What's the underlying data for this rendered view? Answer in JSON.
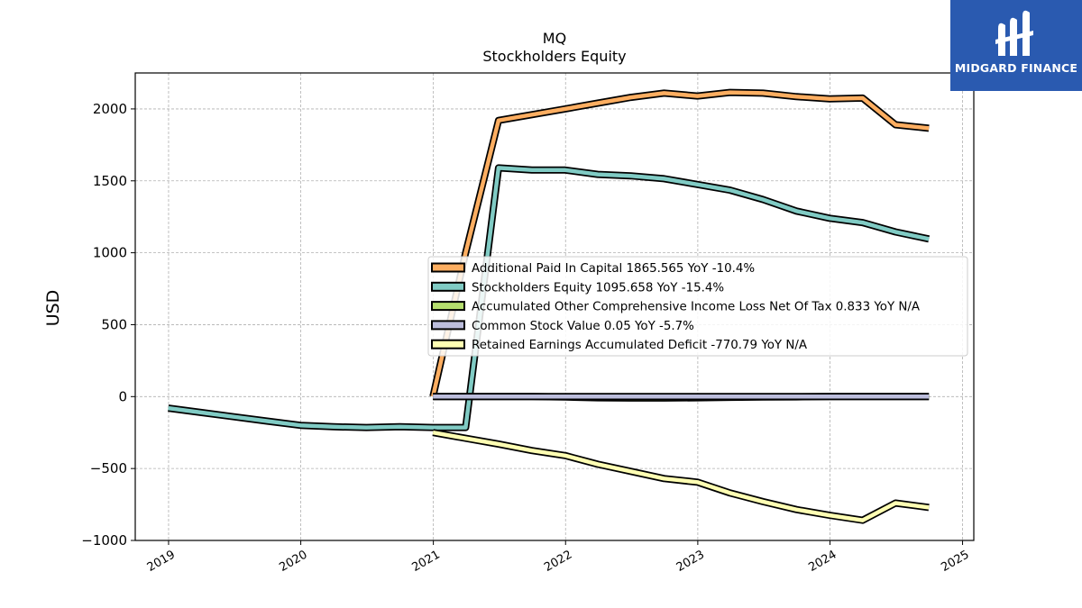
{
  "chart_data": {
    "type": "line",
    "title": "MQ",
    "subtitle": "Stockholders  Equity",
    "ylabel": "USD",
    "xlabel": "",
    "ylim": [
      -1000,
      2250
    ],
    "xlim": [
      "2018-10-01",
      "2025-02-01"
    ],
    "y_ticks": [
      -1000,
      -500,
      0,
      500,
      1000,
      1500,
      2000
    ],
    "y_tick_labels": [
      "−1000",
      "−500",
      "0",
      "500",
      "1000",
      "1500",
      "2000"
    ],
    "x_tick_labels": [
      "2019",
      "2020",
      "2021",
      "2022",
      "2023",
      "2024",
      "2025"
    ],
    "grid": true,
    "legend_position": "center-right",
    "series": [
      {
        "name": "Additional Paid In Capital",
        "legend": "Additional Paid In Capital  1865.565 YoY -10.4%",
        "color": "#fdae61",
        "x": [
          "2020-12-31",
          "2021-03-31",
          "2021-06-30",
          "2021-09-30",
          "2021-12-31",
          "2022-03-31",
          "2022-06-30",
          "2022-09-30",
          "2022-12-31",
          "2023-03-31",
          "2023-06-30",
          "2023-09-30",
          "2023-12-31",
          "2024-03-31",
          "2024-06-30",
          "2024-09-30"
        ],
        "y": [
          0,
          1000,
          1920,
          1960,
          2000,
          2040,
          2080,
          2110,
          2090,
          2115,
          2110,
          2085,
          2070,
          2075,
          1890,
          1865.565
        ]
      },
      {
        "name": "Stockholders Equity",
        "legend": "Stockholders Equity  1095.658 YoY -15.4%",
        "color": "#80cbc4",
        "x": [
          "2018-12-31",
          "2019-03-31",
          "2019-06-30",
          "2019-09-30",
          "2019-12-31",
          "2020-03-31",
          "2020-06-30",
          "2020-09-30",
          "2020-12-31",
          "2021-03-31",
          "2021-06-30",
          "2021-09-30",
          "2021-12-31",
          "2022-03-31",
          "2022-06-30",
          "2022-09-30",
          "2022-12-31",
          "2023-03-31",
          "2023-06-30",
          "2023-09-30",
          "2023-12-31",
          "2024-03-31",
          "2024-06-30",
          "2024-09-30"
        ],
        "y": [
          -80,
          -110,
          -140,
          -170,
          -200,
          -210,
          -215,
          -210,
          -215,
          -215,
          1590,
          1575,
          1575,
          1545,
          1535,
          1515,
          1475,
          1435,
          1370,
          1290,
          1240,
          1210,
          1145,
          1095.658
        ]
      },
      {
        "name": "Accumulated Other Comprehensive Income Loss Net Of Tax",
        "legend": "Accumulated Other Comprehensive Income Loss Net Of Tax  0.833 YoY N/A",
        "color": "#b5de6e",
        "x": [
          "2020-12-31",
          "2021-03-31",
          "2021-06-30",
          "2021-09-30",
          "2021-12-31",
          "2022-03-31",
          "2022-06-30",
          "2022-09-30",
          "2022-12-31",
          "2023-03-31",
          "2023-06-30",
          "2023-09-30",
          "2023-12-31",
          "2024-03-31",
          "2024-06-30",
          "2024-09-30"
        ],
        "y": [
          0,
          0,
          0,
          0,
          -3,
          -8,
          -10,
          -10,
          -8,
          -5,
          -3,
          -2,
          0,
          0,
          0,
          0.833
        ]
      },
      {
        "name": "Common Stock Value",
        "legend": "Common Stock Value  0.05 YoY -5.7%",
        "color": "#bcbddc",
        "x": [
          "2020-12-31",
          "2021-03-31",
          "2021-06-30",
          "2021-09-30",
          "2021-12-31",
          "2022-03-31",
          "2022-06-30",
          "2022-09-30",
          "2022-12-31",
          "2023-03-31",
          "2023-06-30",
          "2023-09-30",
          "2023-12-31",
          "2024-03-31",
          "2024-06-30",
          "2024-09-30"
        ],
        "y": [
          0,
          0,
          0,
          0,
          0,
          0,
          0,
          0,
          0,
          0,
          0,
          0,
          0,
          0,
          0,
          0.05
        ]
      },
      {
        "name": "Retained Earnings Accumulated Deficit",
        "legend": "Retained Earnings Accumulated Deficit  -770.79 YoY N/A",
        "color": "#ffffb3",
        "x": [
          "2020-12-31",
          "2021-03-31",
          "2021-06-30",
          "2021-09-30",
          "2021-12-31",
          "2022-03-31",
          "2022-06-30",
          "2022-09-30",
          "2022-12-31",
          "2023-03-31",
          "2023-06-30",
          "2023-09-30",
          "2023-12-31",
          "2024-03-31",
          "2024-06-30",
          "2024-09-30"
        ],
        "y": [
          -250,
          -290,
          -330,
          -375,
          -410,
          -470,
          -520,
          -570,
          -595,
          -670,
          -730,
          -785,
          -825,
          -860,
          -740,
          -770.79
        ]
      }
    ]
  },
  "logo": {
    "text": "MIDGARD FINANCE",
    "color": "#2a5ab0"
  }
}
